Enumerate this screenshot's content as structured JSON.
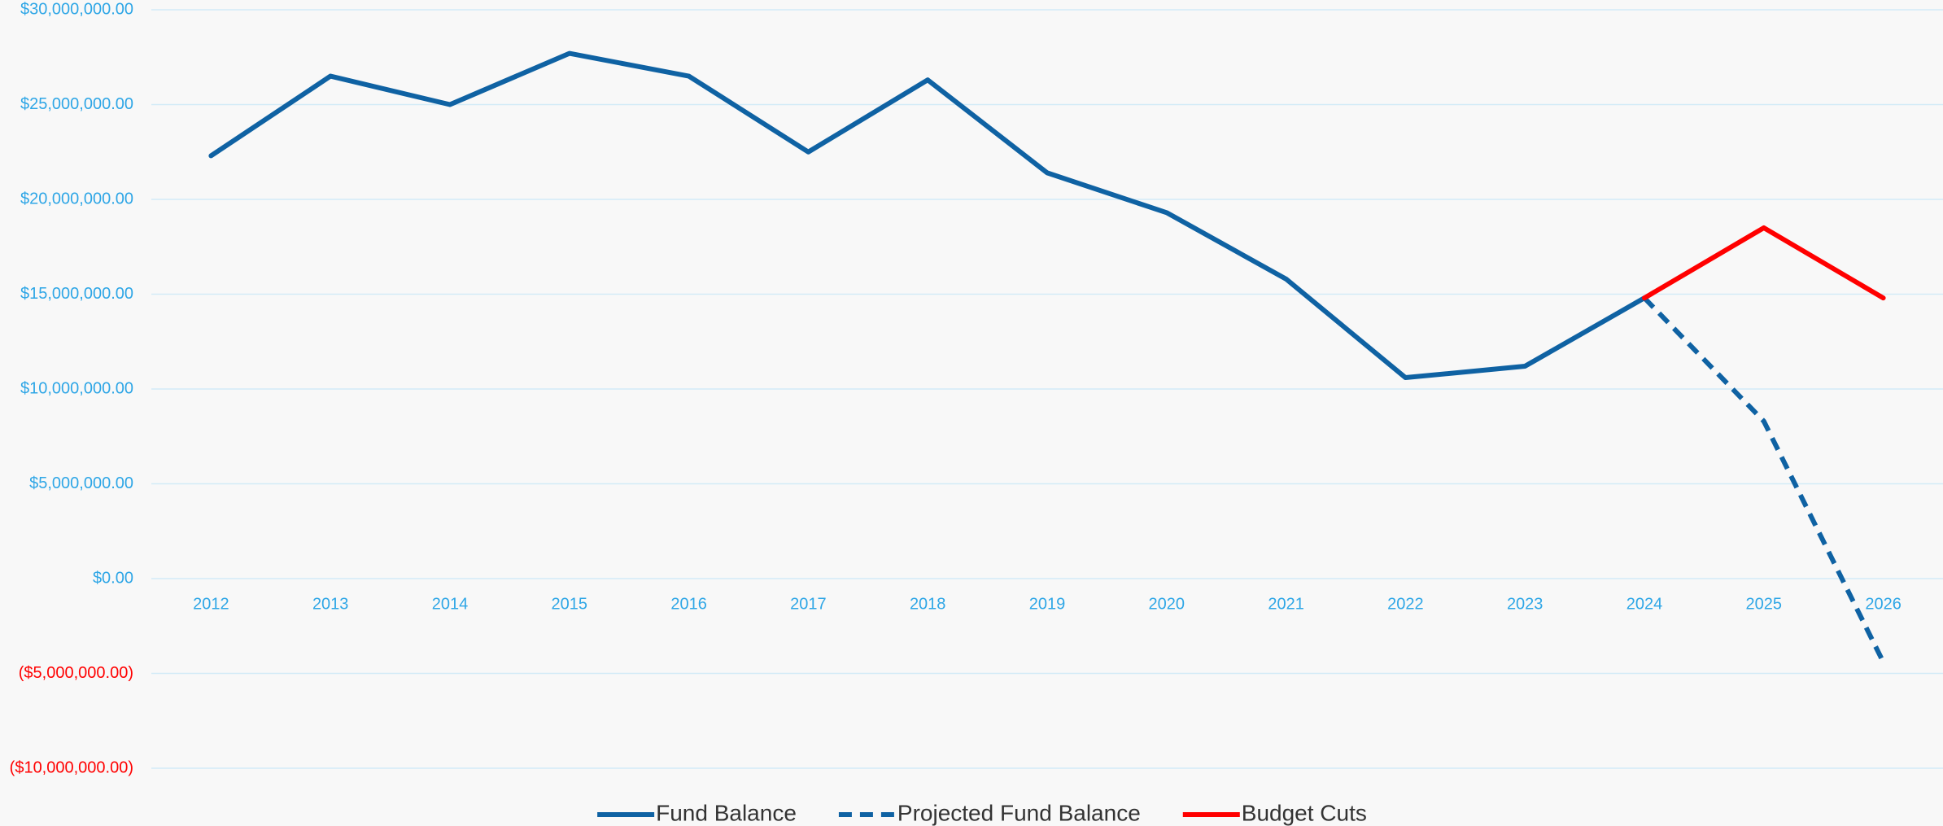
{
  "chart_data": {
    "type": "line",
    "categories": [
      "2012",
      "2013",
      "2014",
      "2015",
      "2016",
      "2017",
      "2018",
      "2019",
      "2020",
      "2021",
      "2022",
      "2023",
      "2024",
      "2025",
      "2026"
    ],
    "series": [
      {
        "name": "Fund Balance",
        "color": "#0f62a3",
        "dashed": false,
        "values": [
          22300000,
          26500000,
          25000000,
          27700000,
          26500000,
          22500000,
          26300000,
          21400000,
          19300000,
          15800000,
          10600000,
          11200000,
          14800000,
          null,
          null
        ]
      },
      {
        "name": "Projected Fund Balance",
        "color": "#0f62a3",
        "dashed": true,
        "values": [
          null,
          null,
          null,
          null,
          null,
          null,
          null,
          null,
          null,
          null,
          null,
          null,
          14800000,
          8300000,
          -4400000
        ]
      },
      {
        "name": "Budget Cuts",
        "color": "#ff0000",
        "dashed": false,
        "values": [
          null,
          null,
          null,
          null,
          null,
          null,
          null,
          null,
          null,
          null,
          null,
          null,
          14800000,
          18500000,
          14800000
        ]
      }
    ],
    "ylim": [
      -10000000,
      30000000
    ],
    "yticks": [
      {
        "value": -10000000,
        "label": "($10,000,000.00)"
      },
      {
        "value": -5000000,
        "label": "($5,000,000.00)"
      },
      {
        "value": 0,
        "label": "$0.00"
      },
      {
        "value": 5000000,
        "label": "$5,000,000.00"
      },
      {
        "value": 10000000,
        "label": "$10,000,000.00"
      },
      {
        "value": 15000000,
        "label": "$15,000,000.00"
      },
      {
        "value": 20000000,
        "label": "$20,000,000.00"
      },
      {
        "value": 25000000,
        "label": "$25,000,000.00"
      },
      {
        "value": 30000000,
        "label": "$30,000,000.00"
      }
    ],
    "grid": true,
    "tick_label_color": "#2ea6e6",
    "negative_label_color": "#ff0000",
    "legend": "bottom"
  }
}
